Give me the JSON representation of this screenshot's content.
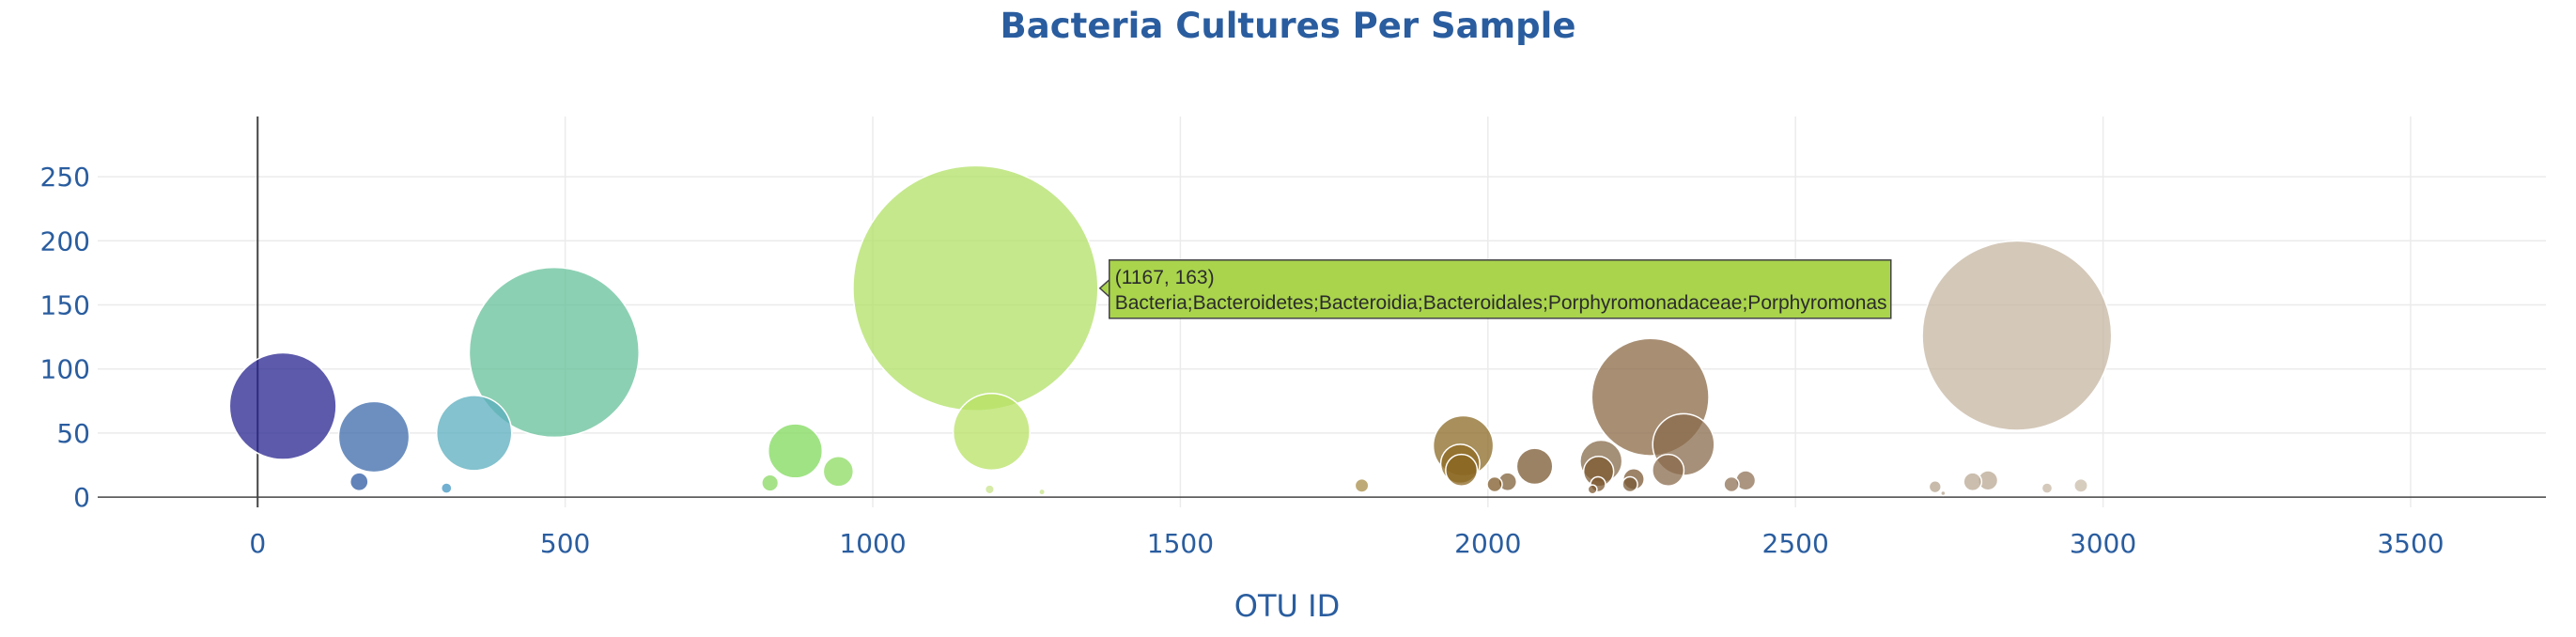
{
  "chart_data": {
    "type": "scatter",
    "title": "Bacteria Cultures Per Sample",
    "xlabel": "OTU ID",
    "ylabel": "",
    "xlim": [
      -260,
      3720
    ],
    "ylim": [
      -8,
      297
    ],
    "x_ticks": [
      0,
      500,
      1000,
      1500,
      2000,
      2500,
      3000,
      3500
    ],
    "y_ticks": [
      0,
      50,
      100,
      150,
      200,
      250
    ],
    "grid": true,
    "zero_line_x": true,
    "marker_opacity": 0.75,
    "colorscale": "Earth",
    "points": [
      {
        "x": 41,
        "y": 71,
        "color": "#27238f"
      },
      {
        "x": 165,
        "y": 12,
        "color": "#2c59a3"
      },
      {
        "x": 189,
        "y": 47,
        "color": "#3b6aaa"
      },
      {
        "x": 307,
        "y": 7,
        "color": "#4296c0"
      },
      {
        "x": 352,
        "y": 50,
        "color": "#5aaebe"
      },
      {
        "x": 482,
        "y": 113,
        "color": "#66c09a"
      },
      {
        "x": 833,
        "y": 11,
        "color": "#88d860"
      },
      {
        "x": 874,
        "y": 36,
        "color": "#80da5c"
      },
      {
        "x": 944,
        "y": 20,
        "color": "#8cdb62"
      },
      {
        "x": 1167,
        "y": 163,
        "color": "#b2e066"
      },
      {
        "x": 1193,
        "y": 51,
        "color": "#b8e264"
      },
      {
        "x": 1795,
        "y": 9,
        "color": "#a88d48"
      },
      {
        "x": 1960,
        "y": 40,
        "color": "#8b6a24"
      },
      {
        "x": 1955,
        "y": 26,
        "color": "#8f6a22"
      },
      {
        "x": 1957,
        "y": 21,
        "color": "#8a6520"
      },
      {
        "x": 2011,
        "y": 10,
        "color": "#7e5a28"
      },
      {
        "x": 2032,
        "y": 12,
        "color": "#80603a"
      },
      {
        "x": 2076,
        "y": 24,
        "color": "#7a5830"
      },
      {
        "x": 2184,
        "y": 28,
        "color": "#856a4a"
      },
      {
        "x": 2180,
        "y": 20,
        "color": "#7c5a30"
      },
      {
        "x": 2179,
        "y": 10,
        "color": "#7c5830"
      },
      {
        "x": 2170,
        "y": 6,
        "color": "#7c5830"
      },
      {
        "x": 2264,
        "y": 78,
        "color": "#8b6945"
      },
      {
        "x": 2237,
        "y": 14,
        "color": "#7c5a36"
      },
      {
        "x": 2231,
        "y": 10,
        "color": "#7a5a36"
      },
      {
        "x": 2318,
        "y": 41,
        "color": "#8a6b4c"
      },
      {
        "x": 2293,
        "y": 21,
        "color": "#8a6b4c"
      },
      {
        "x": 2396,
        "y": 10,
        "color": "#8f7256"
      },
      {
        "x": 2419,
        "y": 13,
        "color": "#8f7256"
      },
      {
        "x": 2727,
        "y": 8,
        "color": "#b5a48f"
      },
      {
        "x": 2788,
        "y": 12,
        "color": "#b9a893"
      },
      {
        "x": 2813,
        "y": 13,
        "color": "#b9a893"
      },
      {
        "x": 2860,
        "y": 126,
        "color": "#c5b5a2"
      },
      {
        "x": 2909,
        "y": 7,
        "color": "#c5b7a4"
      },
      {
        "x": 2964,
        "y": 9,
        "color": "#c9bcaa"
      },
      {
        "x": 1190,
        "y": 6,
        "color": "#c8e48a"
      },
      {
        "x": 1275,
        "y": 4,
        "color": "#c8e48a"
      },
      {
        "x": 2740,
        "y": 3,
        "color": "#b5a48f"
      }
    ],
    "hover": {
      "x": 1167,
      "y": 163,
      "label": "(1167, 163)",
      "text": "Bacteria;Bacteroidetes;Bacteroidia;Bacteroidales;Porphyromonadaceae;Porphyromonas",
      "color": "#a9d44c"
    }
  }
}
